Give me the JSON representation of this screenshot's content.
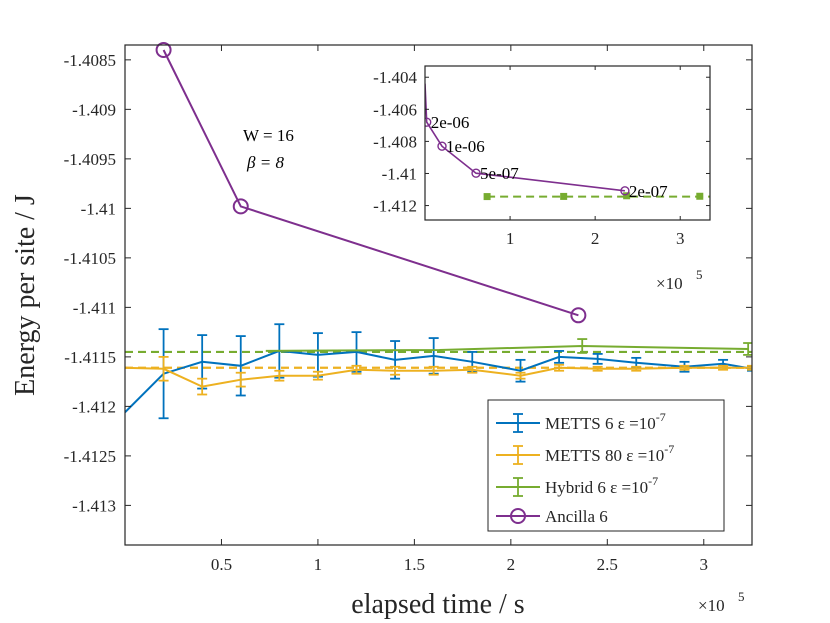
{
  "chart_data": {
    "type": "line",
    "xlabel": "elapsed time / s",
    "ylabel": "Energy per site / J",
    "x_exponent": "5",
    "x_exponent_base": "×10",
    "xlim": [
      0.0,
      3.25
    ],
    "ylim": [
      -1.4134,
      -1.40835
    ],
    "xticks": [
      0.5,
      1,
      1.5,
      2,
      2.5,
      3
    ],
    "xtick_labels": [
      "0.5",
      "1",
      "1.5",
      "2",
      "2.5",
      "3"
    ],
    "yticks": [
      -1.4085,
      -1.409,
      -1.4095,
      -1.41,
      -1.4105,
      -1.411,
      -1.4115,
      -1.412,
      -1.4125,
      -1.413
    ],
    "ytick_labels": [
      "-1.4085",
      "-1.409",
      "-1.4095",
      "-1.41",
      "-1.4105",
      "-1.411",
      "-1.4115",
      "-1.412",
      "-1.4125",
      "-1.413"
    ],
    "annotation_lines": [
      "W = 16",
      "β = 8"
    ],
    "series": [
      {
        "name": "METTS 6 ε =10-7",
        "legend_label": "METTS 6",
        "legend_eps": "ε =10",
        "legend_exp": "-7",
        "color": "#0072BD",
        "marker": "errorbar",
        "x": [
          0.0,
          0.2,
          0.4,
          0.6,
          0.8,
          1.0,
          1.2,
          1.4,
          1.6,
          1.8,
          2.05,
          2.25,
          2.45,
          2.65,
          2.9,
          3.1,
          3.25
        ],
        "y": [
          -1.41206,
          -1.41167,
          -1.41155,
          -1.41159,
          -1.41144,
          -1.41148,
          -1.41145,
          -1.41153,
          -1.41149,
          -1.41155,
          -1.41164,
          -1.4115,
          -1.41152,
          -1.41156,
          -1.4116,
          -1.41157,
          -1.41162
        ],
        "err": [
          0,
          0.00045,
          0.00027,
          0.0003,
          0.00027,
          0.00022,
          0.0002,
          0.00019,
          0.00018,
          0.0001,
          0.00011,
          6e-05,
          5e-05,
          5e-05,
          5e-05,
          4e-05,
          2e-05
        ]
      },
      {
        "name": "METTS 80 ε =10-7",
        "legend_label": "METTS 80",
        "legend_eps": "ε =10",
        "legend_exp": "-7",
        "color": "#EDB120",
        "marker": "errorbar",
        "x": [
          0.0,
          0.2,
          0.4,
          0.6,
          0.8,
          1.0,
          1.2,
          1.4,
          1.6,
          1.8,
          2.05,
          2.25,
          2.45,
          2.65,
          2.9,
          3.1,
          3.25
        ],
        "y": [
          -1.41161,
          -1.41162,
          -1.4118,
          -1.41173,
          -1.41169,
          -1.41169,
          -1.41163,
          -1.41164,
          -1.41164,
          -1.41163,
          -1.41169,
          -1.41161,
          -1.41162,
          -1.41162,
          -1.41161,
          -1.41161,
          -1.41161
        ],
        "err": [
          0,
          0.00012,
          8e-05,
          7e-05,
          5e-05,
          4e-05,
          4e-05,
          4e-05,
          4e-05,
          3e-05,
          3e-05,
          3e-05,
          2e-05,
          2e-05,
          2e-05,
          2e-05,
          2e-05
        ]
      },
      {
        "name": "Hybrid 6 ε =10-7",
        "legend_label": "Hybrid 6",
        "legend_eps": "ε =10",
        "legend_exp": "-7",
        "color": "#77AC30",
        "marker": "errorbar",
        "x": [
          0.73,
          1.63,
          2.37,
          3.23
        ],
        "y": [
          -1.41144,
          -1.41143,
          -1.41139,
          -1.41142
        ],
        "err": [
          0,
          0,
          7e-05,
          6e-05
        ]
      },
      {
        "name": "Ancilla 6",
        "legend_label": "Ancilla 6",
        "color": "#7E2F8E",
        "marker": "circle",
        "x": [
          0.2,
          0.6,
          2.35
        ],
        "y": [
          -1.4084,
          -1.40998,
          -1.41108
        ],
        "err": []
      }
    ],
    "reference_lines": [
      {
        "name": "METTS 80 reference",
        "color": "#EDB120",
        "style": "dashed",
        "y": -1.41161
      },
      {
        "name": "Hybrid 6 reference",
        "color": "#77AC30",
        "style": "dashed",
        "y": -1.41145
      }
    ],
    "inset": {
      "type": "line",
      "xlim": [
        0.0,
        3.35
      ],
      "ylim": [
        -1.4129,
        -1.4033
      ],
      "xticks": [
        1,
        2,
        3
      ],
      "xtick_labels": [
        "1",
        "2",
        "3"
      ],
      "yticks": [
        -1.404,
        -1.406,
        -1.408,
        -1.41,
        -1.412
      ],
      "ytick_labels": [
        "-1.404",
        "-1.406",
        "-1.408",
        "-1.41",
        "-1.412"
      ],
      "x_exponent": "5",
      "x_exponent_base": "×10",
      "ancilla": {
        "color": "#7E2F8E",
        "x": [
          0.0,
          0.02,
          0.2,
          0.6,
          2.35
        ],
        "y": [
          -1.4044,
          -1.4068,
          -1.4083,
          -1.40998,
          -1.41108
        ],
        "marker_indices": [
          1,
          2,
          3,
          4
        ],
        "labels": [
          "2e-06",
          "1e-06",
          "5e-07",
          "2e-07"
        ]
      },
      "hybrid": {
        "color": "#77AC30",
        "x": [
          0.73,
          1.63,
          2.37,
          3.23
        ],
        "y": [
          -1.41144,
          -1.41143,
          -1.41139,
          -1.41142
        ],
        "line_x": [
          0.73,
          3.35
        ]
      }
    }
  }
}
